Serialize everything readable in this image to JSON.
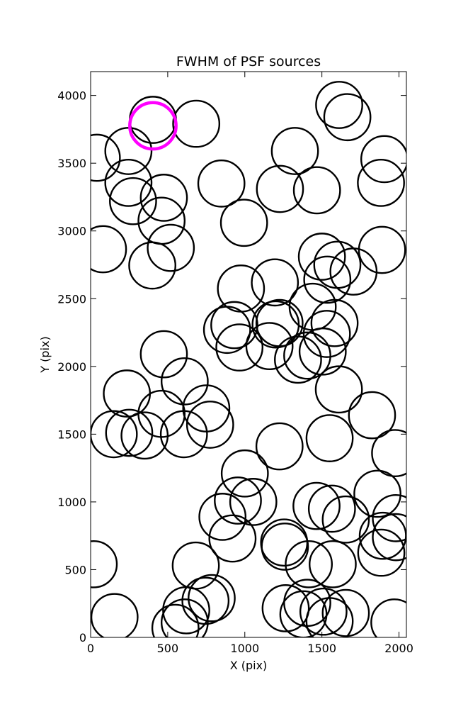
{
  "chart_data": {
    "type": "scatter",
    "title": "FWHM of PSF sources",
    "xlabel": "X (pix)",
    "ylabel": "Y (pix)",
    "xlim": [
      0,
      2048
    ],
    "ylim": [
      0,
      4176
    ],
    "xticks": [
      "0",
      "500",
      "1000",
      "1500",
      "2000"
    ],
    "yticks": [
      "0",
      "500",
      "1000",
      "1500",
      "2000",
      "2500",
      "3000",
      "3500",
      "4000"
    ],
    "xtick_values": [
      0,
      500,
      1000,
      1500,
      2000
    ],
    "ytick_values": [
      0,
      500,
      1000,
      1500,
      2000,
      2500,
      3000,
      3500,
      4000
    ],
    "grid": false,
    "circle_radius": 150,
    "default_color": "#000000",
    "highlight_color": "#ff00ff",
    "highlight": {
      "x": 404,
      "y": 3776
    },
    "points": [
      [
        404,
        3820
      ],
      [
        685,
        3791
      ],
      [
        1612,
        3930
      ],
      [
        1665,
        3840
      ],
      [
        1325,
        3590
      ],
      [
        1905,
        3530
      ],
      [
        40,
        3540
      ],
      [
        245,
        3590
      ],
      [
        245,
        3355
      ],
      [
        275,
        3220
      ],
      [
        475,
        3245
      ],
      [
        460,
        3075
      ],
      [
        848,
        3350
      ],
      [
        1228,
        3310
      ],
      [
        1468,
        3300
      ],
      [
        1883,
        3355
      ],
      [
        995,
        3060
      ],
      [
        80,
        2865
      ],
      [
        520,
        2875
      ],
      [
        400,
        2745
      ],
      [
        1500,
        2810
      ],
      [
        1600,
        2750
      ],
      [
        1535,
        2640
      ],
      [
        1705,
        2700
      ],
      [
        1890,
        2860
      ],
      [
        975,
        2575
      ],
      [
        1195,
        2620
      ],
      [
        1440,
        2440
      ],
      [
        1582,
        2320
      ],
      [
        1532,
        2240
      ],
      [
        1225,
        2320
      ],
      [
        932,
        2305
      ],
      [
        885,
        2270
      ],
      [
        1200,
        2310
      ],
      [
        965,
        2140
      ],
      [
        1160,
        2150
      ],
      [
        1345,
        2050
      ],
      [
        1405,
        2080
      ],
      [
        1505,
        2110
      ],
      [
        1610,
        1830
      ],
      [
        475,
        2090
      ],
      [
        610,
        1890
      ],
      [
        235,
        1800
      ],
      [
        460,
        1650
      ],
      [
        750,
        1690
      ],
      [
        775,
        1570
      ],
      [
        1825,
        1640
      ],
      [
        150,
        1500
      ],
      [
        250,
        1510
      ],
      [
        350,
        1490
      ],
      [
        605,
        1500
      ],
      [
        1225,
        1410
      ],
      [
        1550,
        1470
      ],
      [
        1975,
        1360
      ],
      [
        1000,
        1210
      ],
      [
        1055,
        1000
      ],
      [
        955,
        1010
      ],
      [
        855,
        890
      ],
      [
        1465,
        970
      ],
      [
        1565,
        950
      ],
      [
        1655,
        870
      ],
      [
        1860,
        1060
      ],
      [
        1980,
        880
      ],
      [
        1980,
        740
      ],
      [
        1895,
        750
      ],
      [
        1885,
        625
      ],
      [
        920,
        730
      ],
      [
        1255,
        700
      ],
      [
        1260,
        670
      ],
      [
        682,
        530
      ],
      [
        1415,
        540
      ],
      [
        1570,
        540
      ],
      [
        20,
        540
      ],
      [
        785,
        290
      ],
      [
        745,
        270
      ],
      [
        1405,
        255
      ],
      [
        1265,
        215
      ],
      [
        1380,
        170
      ],
      [
        1510,
        190
      ],
      [
        1655,
        180
      ],
      [
        1550,
        120
      ],
      [
        1970,
        110
      ],
      [
        155,
        150
      ],
      [
        550,
        70
      ],
      [
        610,
        110
      ],
      [
        620,
        200
      ]
    ]
  }
}
